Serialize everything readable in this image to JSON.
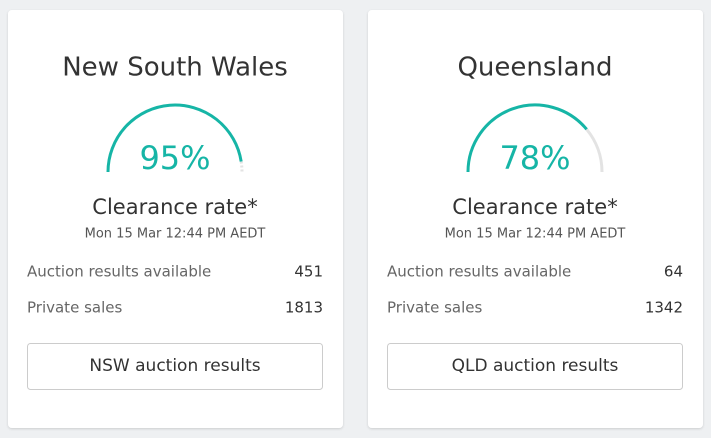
{
  "cards": [
    {
      "title": "New South Wales",
      "rate": 95,
      "rate_label": "95%",
      "rate_caption": "Clearance rate*",
      "timestamp": "Mon 15 Mar 12:44 PM AEDT",
      "rows": [
        {
          "label": "Auction results available",
          "value": "451"
        },
        {
          "label": "Private sales",
          "value": "1813"
        }
      ],
      "button": "NSW auction results"
    },
    {
      "title": "Queensland",
      "rate": 78,
      "rate_label": "78%",
      "rate_caption": "Clearance rate*",
      "timestamp": "Mon 15 Mar 12:44 PM AEDT",
      "rows": [
        {
          "label": "Auction results available",
          "value": "64"
        },
        {
          "label": "Private sales",
          "value": "1342"
        }
      ],
      "button": "QLD auction results"
    }
  ]
}
